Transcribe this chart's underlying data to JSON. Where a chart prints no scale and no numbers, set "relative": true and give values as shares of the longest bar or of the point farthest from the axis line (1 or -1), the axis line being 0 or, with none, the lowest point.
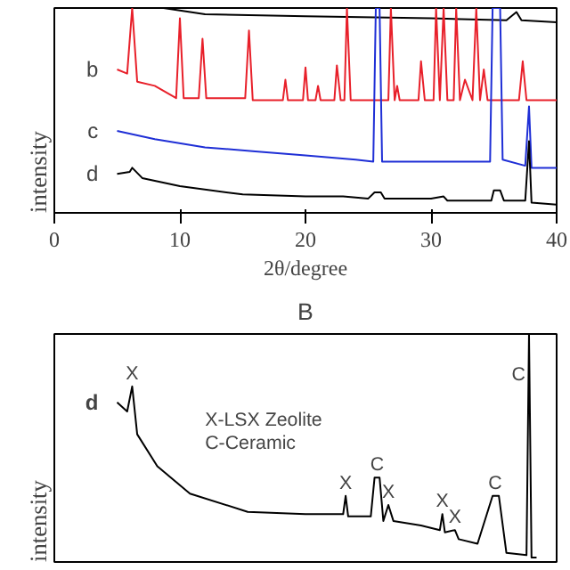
{
  "chart_data": [
    {
      "type": "line",
      "relative": true,
      "xlabel": "2θ/degree",
      "ylabel": "intensity",
      "xlim": [
        0,
        40
      ],
      "xticks": [
        0,
        10,
        20,
        30,
        40
      ],
      "grid": false,
      "series": [
        {
          "color": "#000000",
          "x": [
            8.7,
            12,
            20,
            30,
            36,
            36.8,
            37.2,
            40
          ],
          "values": [
            1,
            0.97,
            0.96,
            0.95,
            0.94,
            0.98,
            0.94,
            0.93
          ]
        },
        {
          "name": "b",
          "color": "#e8202a",
          "x": [
            5,
            5.8,
            6.2,
            6.6,
            8,
            9.7,
            10,
            10.3,
            11.5,
            11.8,
            12.1,
            15.2,
            15.5,
            15.8,
            18.2,
            18.4,
            18.6,
            19.8,
            20,
            20.2,
            20.8,
            21,
            21.2,
            22.3,
            22.5,
            22.8,
            23.1,
            23.3,
            23.6,
            26.6,
            26.8,
            27.1,
            27.3,
            27.5,
            29,
            29.2,
            29.5,
            30.2,
            30.4,
            30.7,
            31,
            31.3,
            31.8,
            32,
            32.3,
            32.7,
            33.3,
            33.6,
            33.9,
            34.2,
            34.5,
            37,
            37.3,
            37.6,
            38.6,
            40
          ],
          "values": [
            0.7,
            0.68,
            1,
            0.64,
            0.62,
            0.56,
            0.95,
            0.56,
            0.56,
            0.85,
            0.56,
            0.56,
            0.89,
            0.55,
            0.55,
            0.65,
            0.55,
            0.55,
            0.71,
            0.55,
            0.55,
            0.62,
            0.55,
            0.55,
            0.72,
            0.55,
            0.55,
            1,
            0.55,
            0.55,
            1,
            0.55,
            0.62,
            0.55,
            0.55,
            0.74,
            0.55,
            0.55,
            1,
            0.55,
            1,
            0.55,
            0.55,
            1,
            0.55,
            0.65,
            0.55,
            1,
            0.55,
            0.7,
            0.55,
            0.55,
            0.74,
            0.55,
            0.55,
            0.55
          ]
        },
        {
          "name": "c",
          "color": "#1f2fd6",
          "x": [
            5,
            8,
            12,
            16,
            20,
            24,
            25.4,
            25.6,
            25.9,
            26.1,
            30,
            34.7,
            34.9,
            35.5,
            35.7,
            37.5,
            37.8,
            38,
            40
          ],
          "values": [
            0.4,
            0.36,
            0.32,
            0.3,
            0.28,
            0.26,
            0.25,
            1,
            1,
            0.25,
            0.25,
            0.25,
            1,
            1,
            0.26,
            0.23,
            0.52,
            0.22,
            0.22
          ]
        },
        {
          "name": "d",
          "color": "#000000",
          "x": [
            5,
            6,
            6.2,
            7,
            10,
            15,
            20,
            23,
            25,
            25.5,
            26,
            26.3,
            30,
            31,
            31.3,
            34.8,
            35,
            35.5,
            35.8,
            37.5,
            37.8,
            38,
            40
          ],
          "values": [
            0.19,
            0.2,
            0.22,
            0.17,
            0.13,
            0.09,
            0.08,
            0.08,
            0.07,
            0.1,
            0.1,
            0.07,
            0.07,
            0.08,
            0.06,
            0.06,
            0.11,
            0.11,
            0.06,
            0.06,
            0.35,
            0.05,
            0.04
          ]
        }
      ]
    },
    {
      "type": "line",
      "relative": true,
      "title": "B",
      "ylabel": "intensity",
      "xlim": [
        0,
        40
      ],
      "tick_labels": false,
      "grid": false,
      "annotations": [
        {
          "text": "X",
          "x": 6.2,
          "y": 0.77
        },
        {
          "text": "X",
          "x": 23.2,
          "y": 0.29
        },
        {
          "text": "C",
          "x": 25.7,
          "y": 0.37
        },
        {
          "text": "X",
          "x": 26.6,
          "y": 0.25
        },
        {
          "text": "X",
          "x": 30.9,
          "y": 0.21
        },
        {
          "text": "X",
          "x": 31.9,
          "y": 0.14
        },
        {
          "text": "C",
          "x": 35.1,
          "y": 0.29
        },
        {
          "text": "C",
          "x": 37.8,
          "y": 1
        },
        "X-LSX Zeolite",
        "C-Ceramic"
      ],
      "series": [
        {
          "name": "d",
          "color": "#000000",
          "x": [
            5,
            5.8,
            6.2,
            6.6,
            8.2,
            10.8,
            15.4,
            20,
            23,
            23.2,
            23.4,
            25.2,
            25.5,
            25.9,
            26.2,
            26.6,
            27,
            29.2,
            30.7,
            30.9,
            31.1,
            31.9,
            32.2,
            33.7,
            34.9,
            35.4,
            36,
            37.6,
            37.8,
            38,
            38.4
          ],
          "values": [
            0.7,
            0.66,
            0.77,
            0.56,
            0.42,
            0.3,
            0.22,
            0.21,
            0.21,
            0.29,
            0.2,
            0.2,
            0.37,
            0.37,
            0.18,
            0.25,
            0.18,
            0.16,
            0.14,
            0.21,
            0.13,
            0.14,
            0.1,
            0.08,
            0.29,
            0.29,
            0.04,
            0.03,
            1,
            0.02,
            0.02
          ]
        }
      ]
    }
  ]
}
